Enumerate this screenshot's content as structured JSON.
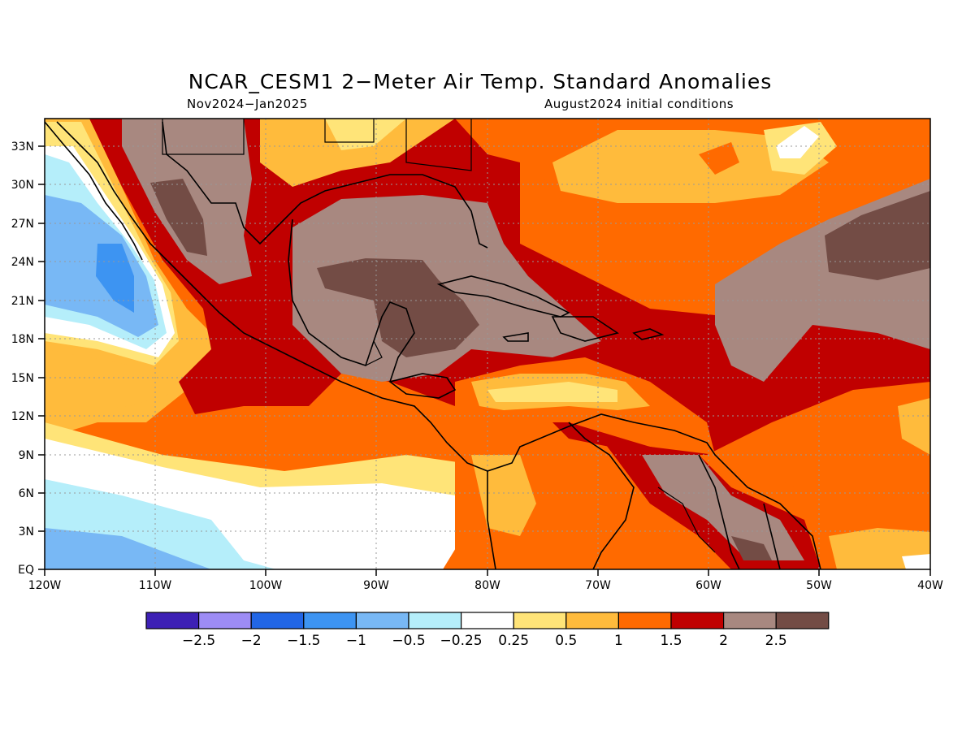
{
  "title": "NCAR_CESM1 2−Meter Air Temp. Standard Anomalies",
  "subtitle_left": "Nov2024−Jan2025",
  "subtitle_right": "August2024 initial conditions",
  "lon_labels": [
    "120W",
    "110W",
    "100W",
    "90W",
    "80W",
    "70W",
    "60W",
    "50W",
    "40W"
  ],
  "lat_labels": [
    "EQ",
    "3N",
    "6N",
    "9N",
    "12N",
    "15N",
    "18N",
    "21N",
    "24N",
    "27N",
    "30N",
    "33N"
  ],
  "colorbar": {
    "colors": [
      "#3d20b5",
      "#9d8cf5",
      "#2266e6",
      "#3d94f2",
      "#78b8f5",
      "#b5eefa",
      "#ffffff",
      "#ffe478",
      "#ffbb3c",
      "#ff6a00",
      "#c00000",
      "#a88880",
      "#734c45"
    ],
    "labels": [
      "−2.5",
      "−2",
      "−1.5",
      "−1",
      "−0.5",
      "−0.25",
      "0.25",
      "0.5",
      "1",
      "1.5",
      "2",
      "2.5"
    ]
  }
}
